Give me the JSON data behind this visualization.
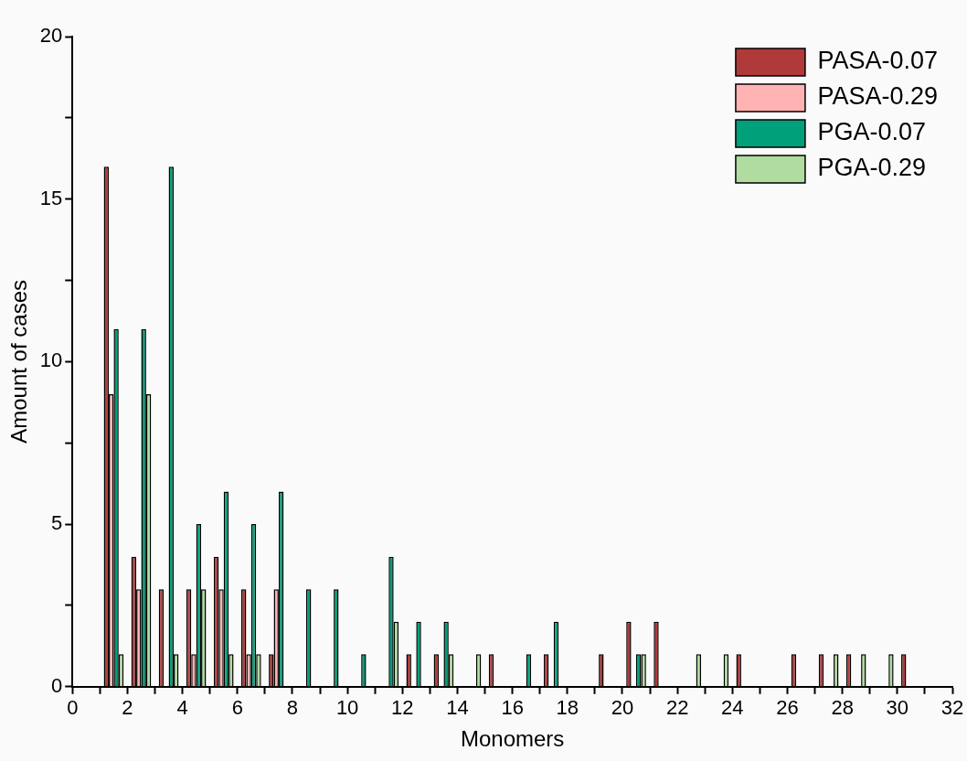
{
  "chart_data": {
    "type": "bar",
    "xlabel": "Monomers",
    "ylabel": "Amount of cases",
    "x": [
      1.5,
      2.5,
      3.5,
      4.5,
      5.5,
      6.5,
      7.5,
      8.5,
      9.5,
      10.5,
      11.5,
      12.5,
      13.5,
      14.5,
      15.5,
      16.5,
      17.5,
      18.5,
      19.5,
      20.5,
      21.5,
      22.5,
      23.5,
      24.5,
      25.5,
      26.5,
      27.5,
      28.5,
      29.5,
      30.5
    ],
    "series": [
      {
        "name": "PASA-0.07",
        "color": "#b03a3a",
        "values": [
          16,
          4,
          3,
          3,
          4,
          3,
          1,
          0,
          0,
          0,
          0,
          1,
          1,
          0,
          1,
          0,
          1,
          0,
          1,
          2,
          2,
          0,
          0,
          1,
          0,
          1,
          1,
          1,
          0,
          1
        ]
      },
      {
        "name": "PASA-0.29",
        "color": "#ffb3b3",
        "values": [
          9,
          3,
          0,
          1,
          3,
          1,
          3,
          0,
          0,
          0,
          0,
          0,
          0,
          0,
          0,
          0,
          0,
          0,
          0,
          0,
          0,
          0,
          0,
          0,
          0,
          0,
          0,
          0,
          0,
          0
        ]
      },
      {
        "name": "PGA-0.07",
        "color": "#00a07a",
        "values": [
          11,
          11,
          16,
          5,
          6,
          5,
          6,
          3,
          3,
          1,
          4,
          2,
          2,
          0,
          0,
          1,
          2,
          0,
          0,
          1,
          0,
          0,
          0,
          0,
          0,
          0,
          0,
          0,
          0,
          0
        ]
      },
      {
        "name": "PGA-0.29",
        "color": "#b0dca0",
        "values": [
          1,
          9,
          1,
          3,
          1,
          1,
          0,
          0,
          0,
          0,
          2,
          0,
          1,
          1,
          0,
          0,
          0,
          0,
          0,
          1,
          0,
          1,
          1,
          0,
          0,
          0,
          1,
          1,
          1,
          0
        ]
      }
    ],
    "xlim": [
      0,
      32
    ],
    "xticks": [
      0,
      {
        "value": 1,
        "label": null
      },
      2,
      {
        "value": 3,
        "label": null
      },
      4,
      {
        "value": 5,
        "label": null
      },
      6,
      {
        "value": 7,
        "label": null
      },
      8,
      {
        "value": 9,
        "label": null
      },
      10,
      {
        "value": 11,
        "label": null
      },
      12,
      {
        "value": 13,
        "label": null
      },
      14,
      {
        "value": 15,
        "label": null
      },
      16,
      {
        "value": 17,
        "label": null
      },
      18,
      {
        "value": 19,
        "label": null
      },
      20,
      {
        "value": 21,
        "label": null
      },
      22,
      {
        "value": 23,
        "label": null
      },
      24,
      {
        "value": 25,
        "label": null
      },
      26,
      {
        "value": 27,
        "label": null
      },
      28,
      {
        "value": 29,
        "label": null
      },
      30,
      {
        "value": 31,
        "label": null
      },
      32
    ],
    "ylim": [
      0,
      20
    ],
    "yticks": [
      0,
      {
        "value": 2.5,
        "label": null
      },
      5,
      {
        "value": 7.5,
        "label": null
      },
      10,
      {
        "value": 12.5,
        "label": null
      },
      15,
      {
        "value": 17.5,
        "label": null
      },
      20
    ],
    "grid": false,
    "legend": "top right"
  }
}
